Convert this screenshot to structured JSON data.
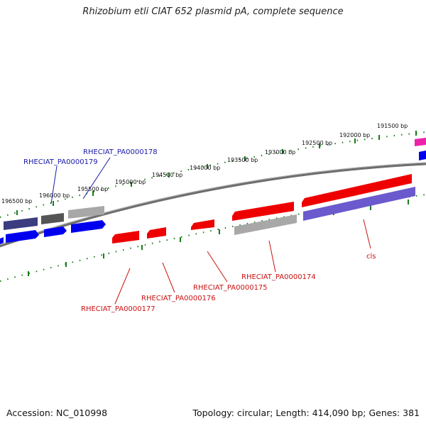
{
  "title": "Rhizobium etli CIAT 652 plasmid pA, complete sequence",
  "footer": {
    "accession": "Accession: NC_010998",
    "summary": "Topology: circular; Length: 414,090 bp; Genes: 381"
  },
  "ruler_labels": [
    "191500 bp",
    "192000 bp",
    "192500 bp",
    "193000 bp",
    "193500 bp",
    "194000 bp",
    "194500 bp",
    "195000 bp",
    "195500 bp",
    "196000 bp",
    "196500 bp"
  ],
  "gene_labels": {
    "pa178": "RHECIAT_PA0000178",
    "pa179": "RHECIAT_PA0000179",
    "pa174": "RHECIAT_PA0000174",
    "pa175": "RHECIAT_PA0000175",
    "pa176": "RHECIAT_PA0000176",
    "pa177": "RHECIAT_PA0000177",
    "cls": "cls"
  },
  "colors": {
    "forward_label": "#1a1aa8",
    "reverse_label": "#cc1111",
    "gene_red": "#ee0000",
    "gene_blue": "#0000ee",
    "gene_gray": "#a8a8a8",
    "gene_dark_gray": "#555555",
    "gene_slate": "#3c3c80",
    "gene_lavender": "#6a5acd",
    "gene_magenta": "#ee22aa",
    "tick_green": "#1a7a1a",
    "backbone": "#7a7a7a"
  }
}
